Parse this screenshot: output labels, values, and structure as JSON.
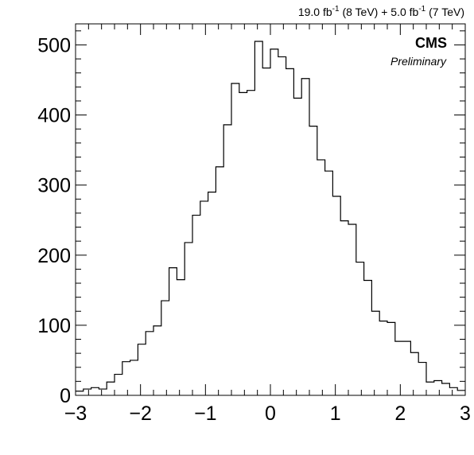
{
  "chart_data": {
    "type": "histogram",
    "title": "",
    "xlabel": "",
    "ylabel": "",
    "xlim": [
      -3,
      3
    ],
    "ylim": [
      0,
      530
    ],
    "x_ticks": [
      "−3",
      "−2",
      "−1",
      "0",
      "1",
      "2",
      "3"
    ],
    "y_ticks": [
      "0",
      "100",
      "200",
      "300",
      "400",
      "500"
    ],
    "bin_edges_start": -3.0,
    "bin_width": 0.12,
    "values": [
      6,
      9,
      11,
      9,
      19,
      30,
      48,
      50,
      73,
      91,
      99,
      135,
      182,
      165,
      218,
      257,
      277,
      290,
      326,
      386,
      445,
      432,
      435,
      505,
      467,
      494,
      483,
      466,
      424,
      452,
      384,
      336,
      320,
      284,
      249,
      244,
      190,
      164,
      120,
      106,
      104,
      77,
      77,
      61,
      47,
      19,
      21,
      17,
      11,
      7
    ],
    "lumi_label_parts": {
      "a": "19.0 fb",
      "a_sup": "-1",
      "b": " (8 TeV) + 5.0 fb",
      "b_sup": "-1",
      "c": " (7 TeV)"
    },
    "experiment_label": "CMS",
    "status_label": "Preliminary",
    "line_color": "#000000"
  }
}
